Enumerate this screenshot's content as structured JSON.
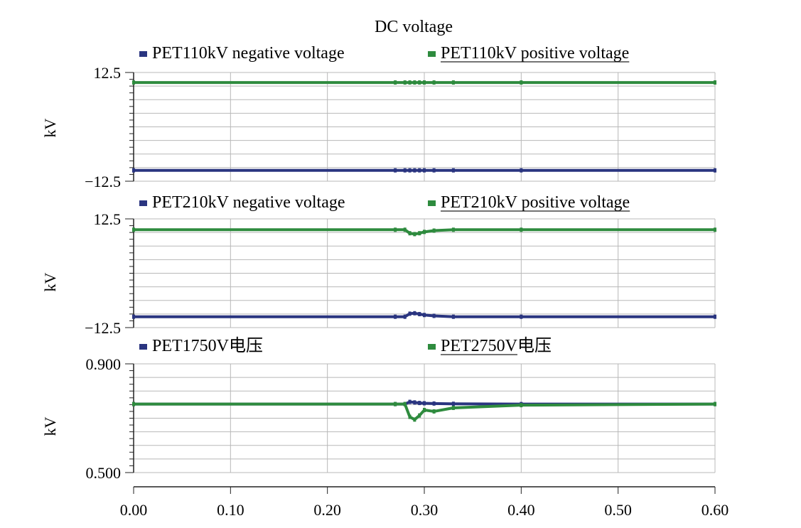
{
  "chart_data": [
    {
      "type": "line",
      "title": "DC voltage",
      "ylabel": "kV",
      "ylim": [
        -12.5,
        12.5
      ],
      "ytick_labels": [
        "12.5",
        "−12.5"
      ],
      "x": [
        0.0,
        0.27,
        0.28,
        0.285,
        0.29,
        0.295,
        0.3,
        0.31,
        0.33,
        0.4,
        0.6
      ],
      "series": [
        {
          "name": "PET110kV negative voltage",
          "color": "#2a3580",
          "legend_underlined": false,
          "values": [
            -10.0,
            -10.0,
            -10.0,
            -10.0,
            -10.0,
            -10.0,
            -10.0,
            -10.0,
            -10.0,
            -10.0,
            -10.0
          ]
        },
        {
          "name": "PET110kV positive voltage",
          "color": "#2e8b3e",
          "legend_underlined": true,
          "values": [
            10.2,
            10.2,
            10.2,
            10.2,
            10.2,
            10.2,
            10.2,
            10.2,
            10.2,
            10.2,
            10.2
          ]
        }
      ]
    },
    {
      "type": "line",
      "ylabel": "kV",
      "ylim": [
        -12.5,
        12.5
      ],
      "ytick_labels": [
        "12.5",
        "−12.5"
      ],
      "x": [
        0.0,
        0.27,
        0.28,
        0.285,
        0.29,
        0.295,
        0.3,
        0.31,
        0.33,
        0.4,
        0.6
      ],
      "series": [
        {
          "name": "PET210kV negative voltage",
          "color": "#2a3580",
          "legend_underlined": false,
          "values": [
            -10.0,
            -10.0,
            -10.0,
            -9.3,
            -9.2,
            -9.4,
            -9.6,
            -9.8,
            -10.0,
            -10.0,
            -10.0
          ]
        },
        {
          "name": "PET210kV positive voltage",
          "color": "#2e8b3e",
          "legend_underlined": true,
          "values": [
            10.0,
            10.0,
            10.0,
            9.2,
            9.0,
            9.2,
            9.5,
            9.8,
            10.0,
            10.0,
            10.0
          ]
        }
      ]
    },
    {
      "type": "line",
      "ylabel": "kV",
      "xlabel": "",
      "ylim": [
        0.5,
        0.9
      ],
      "ytick_labels": [
        "0.900",
        "0.500"
      ],
      "x": [
        0.0,
        0.27,
        0.28,
        0.285,
        0.29,
        0.295,
        0.3,
        0.31,
        0.33,
        0.4,
        0.6
      ],
      "xtick_labels": [
        "0.00",
        "0.10",
        "0.20",
        "0.30",
        "0.40",
        "0.50",
        "0.60"
      ],
      "series": [
        {
          "name": "PET1750V电压",
          "name_underlined_part": "",
          "color": "#2a3580",
          "legend_underlined": false,
          "values": [
            0.752,
            0.752,
            0.752,
            0.76,
            0.758,
            0.756,
            0.755,
            0.754,
            0.753,
            0.752,
            0.752
          ]
        },
        {
          "name": "PET2750V电压",
          "name_underlined_part": "PET2750V",
          "color": "#2e8b3e",
          "legend_underlined": true,
          "values": [
            0.752,
            0.752,
            0.752,
            0.705,
            0.695,
            0.71,
            0.73,
            0.725,
            0.738,
            0.748,
            0.752
          ]
        }
      ]
    }
  ]
}
